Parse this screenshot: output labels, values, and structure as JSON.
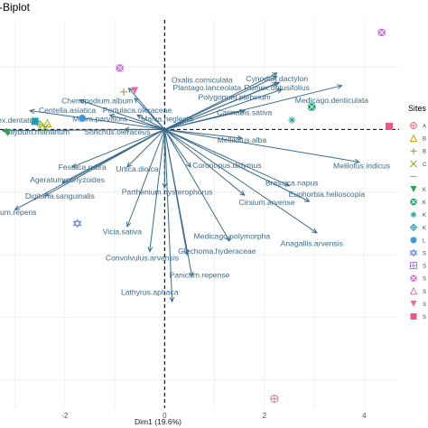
{
  "title": "-Biplot",
  "chart_data": {
    "type": "scatter",
    "title": "-Biplot",
    "xlabel": "Dim1 (19.6%)",
    "ylabel": "",
    "xlim": [
      -3.3,
      4.7
    ],
    "ylim": [
      -4.45,
      1.75
    ],
    "x_ticks": [
      -2,
      0,
      2,
      4
    ],
    "x_tick_labels": [
      "-2",
      "0",
      "2",
      "4"
    ],
    "grid": true,
    "zero_lines": "dashed",
    "origin": [
      0,
      0
    ],
    "arrow_color": "#3a6b8c",
    "variables": [
      {
        "name": "Cynodon.dactylon",
        "x": 2.25,
        "y": 0.9
      },
      {
        "name": "Oxalis.corniculata",
        "x": 2.25,
        "y": 0.85
      },
      {
        "name": "Rumex.obtusifolius",
        "x": 2.3,
        "y": 0.75
      },
      {
        "name": "Plantago.lanceolata",
        "x": 2.25,
        "y": 0.74
      },
      {
        "name": "Polygonum.plebeium",
        "x": 2.35,
        "y": 0.64
      },
      {
        "name": "Medicago.denticulata",
        "x": 3.55,
        "y": 0.7
      },
      {
        "name": "Chenopodium.album",
        "x": -0.72,
        "y": 0.66
      },
      {
        "name": "Portulaca.oleraceae",
        "x": -0.6,
        "y": 0.5
      },
      {
        "name": "Centella.asiatica",
        "x": -1.7,
        "y": 0.47
      },
      {
        "name": "Cannabis.sativa",
        "x": 1.6,
        "y": 0.3
      },
      {
        "name": "Malva.neglecta",
        "x": -0.55,
        "y": 0.23
      },
      {
        "name": "Malva.parviflora",
        "x": -1.1,
        "y": 0.23
      },
      {
        "name": "Rumex.dentatus",
        "x": -2.7,
        "y": 0.3
      },
      {
        "name": "Silybum.marianum",
        "x": -3.25,
        "y": -0.02
      },
      {
        "name": "Sonchus.oleraceus",
        "x": -0.8,
        "y": 0.0
      },
      {
        "name": "Melilotus.alba",
        "x": 1.55,
        "y": -0.14
      },
      {
        "name": "Melilotus.indicus",
        "x": 3.9,
        "y": -0.52
      },
      {
        "name": "Festuca.rubra",
        "x": -1.85,
        "y": -0.6
      },
      {
        "name": "Urtica.dioica",
        "x": -0.75,
        "y": -0.6
      },
      {
        "name": "Coronopus.didymus",
        "x": 0.52,
        "y": -0.6
      },
      {
        "name": "Ageratum.conyzoides",
        "x": -2.05,
        "y": -0.85
      },
      {
        "name": "Brassica.napus",
        "x": 2.5,
        "y": -0.9
      },
      {
        "name": "Parthenium.hysterophorus",
        "x": 0.0,
        "y": -0.93
      },
      {
        "name": "Digitaria.sanguinalis",
        "x": -2.4,
        "y": -1.06
      },
      {
        "name": "Euphorbia.helioscopia",
        "x": 2.9,
        "y": -1.15
      },
      {
        "name": "Cynodon.repens",
        "x": -3.0,
        "y": -1.28
      },
      {
        "name": "Cirsium.arvense",
        "x": 1.6,
        "y": -1.05
      },
      {
        "name": "Anagallis.arvensis",
        "x": 3.05,
        "y": -1.65
      },
      {
        "name": "Vicia.sativa",
        "x": -0.75,
        "y": -1.55
      },
      {
        "name": "Medicago.polymorpha",
        "x": 1.3,
        "y": -1.78
      },
      {
        "name": "Glechoma.hyderaceae",
        "x": 0.45,
        "y": -2.0
      },
      {
        "name": "Convolvulus.arvensis",
        "x": -0.3,
        "y": -1.95
      },
      {
        "name": "Panicum.repense",
        "x": 0.55,
        "y": -2.35
      },
      {
        "name": "Lathyrus.aphaca",
        "x": 0.15,
        "y": -2.75
      }
    ],
    "variable_labels": [
      {
        "text": "Oxalis.corniculata",
        "x": 0.75,
        "y": 0.79
      },
      {
        "text": "Cynodon.dactylon",
        "x": 2.25,
        "y": 0.81
      },
      {
        "text": "Plantago.lanceolata",
        "x": 0.85,
        "y": 0.67
      },
      {
        "text": "Rumex.obtusifolius",
        "x": 2.25,
        "y": 0.67
      },
      {
        "text": "Polygonum.plebeium",
        "x": 1.4,
        "y": 0.52
      },
      {
        "text": "Medicago.denticulata",
        "x": 3.35,
        "y": 0.47
      },
      {
        "text": "Chenopodium.album",
        "x": -1.35,
        "y": 0.46
      },
      {
        "text": "Centella.asiatica",
        "x": -1.95,
        "y": 0.31
      },
      {
        "text": "Portulaca.oleraceae",
        "x": -0.55,
        "y": 0.31
      },
      {
        "text": "Carinabis.sativa",
        "x": 1.6,
        "y": 0.27
      },
      {
        "text": "Malva.parviflora",
        "x": -1.3,
        "y": 0.17
      },
      {
        "text": "Malva.neglecta",
        "x": 0.05,
        "y": 0.17
      },
      {
        "text": "ex.dentatus",
        "x": -2.95,
        "y": 0.15
      },
      {
        "text": "Silybum.marianum",
        "x": -2.55,
        "y": -0.04
      },
      {
        "text": "Sonchus.oleraceus",
        "x": -0.95,
        "y": -0.04
      },
      {
        "text": "Mellilotus.alba",
        "x": 1.55,
        "y": -0.17
      },
      {
        "text": "Melilotus.indicus",
        "x": 3.95,
        "y": -0.58
      },
      {
        "text": "Festuca.rubra",
        "x": -1.65,
        "y": -0.6
      },
      {
        "text": "Urtica.dioica",
        "x": -0.55,
        "y": -0.63
      },
      {
        "text": "Coronopus.didymus",
        "x": 1.25,
        "y": -0.57
      },
      {
        "text": "Ageratum.conyzoides",
        "x": -1.95,
        "y": -0.8
      },
      {
        "text": "Brassica.napus",
        "x": 2.55,
        "y": -0.85
      },
      {
        "text": "Parthenium.hysterophorus",
        "x": 0.05,
        "y": -1.0
      },
      {
        "text": "Euphorbia.helioscopia",
        "x": 3.25,
        "y": -1.03
      },
      {
        "text": "Digitaria.sanguinalis",
        "x": -2.1,
        "y": -1.06
      },
      {
        "text": "Cirsium.arvense",
        "x": 2.05,
        "y": -1.16
      },
      {
        "text": "ium.repens",
        "x": -2.95,
        "y": -1.32
      },
      {
        "text": "Anagallis.arvensis",
        "x": 2.95,
        "y": -1.82
      },
      {
        "text": "Vicia.sativa",
        "x": -0.85,
        "y": -1.63
      },
      {
        "text": "Medicago.polymorpha",
        "x": 1.35,
        "y": -1.7
      },
      {
        "text": "Glechoma.hyderaceae",
        "x": 1.05,
        "y": -1.94
      },
      {
        "text": "Convolvulus.arvensis",
        "x": -0.45,
        "y": -2.05
      },
      {
        "text": "Panicum.repense",
        "x": 0.7,
        "y": -2.32
      },
      {
        "text": "Lathyrus.aphaca",
        "x": -0.3,
        "y": -2.6
      }
    ],
    "legend": {
      "title": "Sites",
      "position": "right",
      "entries": [
        {
          "label": "A",
          "shape": "circle-plus",
          "color": "#e07a7a"
        },
        {
          "label": "B",
          "shape": "triangle",
          "color": "#c8a200"
        },
        {
          "label": "B",
          "shape": "plus",
          "color": "#b08f20"
        },
        {
          "label": "C",
          "shape": "x",
          "color": "#7ea020"
        },
        {
          "label": "",
          "shape": "dash",
          "color": "#8fb030"
        },
        {
          "label": "K",
          "shape": "triangle-down",
          "color": "#2e9f4a"
        },
        {
          "label": "K",
          "shape": "square-x",
          "color": "#1a9a6a"
        },
        {
          "label": "K",
          "shape": "asterisk",
          "color": "#20a99a"
        },
        {
          "label": "K",
          "shape": "diamond-plus",
          "color": "#1aa0b8"
        },
        {
          "label": "L",
          "shape": "circle",
          "color": "#3f98d8"
        },
        {
          "label": "S",
          "shape": "star6",
          "color": "#6d8ae0"
        },
        {
          "label": "S",
          "shape": "square-plus",
          "color": "#a57fe0"
        },
        {
          "label": "S",
          "shape": "square-x",
          "color": "#c874d6"
        },
        {
          "label": "S",
          "shape": "triangle",
          "color": "#e070c0"
        },
        {
          "label": "S",
          "shape": "triangle-down",
          "color": "#ec6aa0"
        },
        {
          "label": "S",
          "shape": "square",
          "color": "#ee5a7e"
        }
      ]
    },
    "sites": [
      {
        "x": 2.2,
        "y": -4.3,
        "shape": "circle-plus",
        "color": "#e07a7a"
      },
      {
        "x": -2.35,
        "y": 0.1,
        "shape": "triangle",
        "color": "#c8a200"
      },
      {
        "x": -0.82,
        "y": 0.6,
        "shape": "plus",
        "color": "#b08f20"
      },
      {
        "x": -2.4,
        "y": 0.03,
        "shape": "x",
        "color": "#7ea020"
      },
      {
        "x": -2.5,
        "y": 0.08,
        "shape": "diamond-plus",
        "color": "#9bb020"
      },
      {
        "x": -3.15,
        "y": -0.05,
        "shape": "triangle-down",
        "color": "#2e9f4a"
      },
      {
        "x": 2.95,
        "y": 0.36,
        "shape": "square-x",
        "color": "#1a9a6a"
      },
      {
        "x": 2.55,
        "y": 0.15,
        "shape": "asterisk",
        "color": "#20a99a"
      },
      {
        "x": -2.6,
        "y": 0.13,
        "shape": "square",
        "color": "#1aa0b8"
      },
      {
        "x": -1.65,
        "y": 0.18,
        "shape": "circle",
        "color": "#3f98d8"
      },
      {
        "x": -1.75,
        "y": -1.5,
        "shape": "star6",
        "color": "#6d8ae0"
      },
      {
        "x": -0.9,
        "y": 0.98,
        "shape": "square-x",
        "color": "#c874d6"
      },
      {
        "x": 4.35,
        "y": 1.55,
        "shape": "square-x",
        "color": "#c874d6"
      },
      {
        "x": -0.6,
        "y": 0.62,
        "shape": "triangle-down",
        "color": "#ec6aa0"
      },
      {
        "x": 4.5,
        "y": 0.05,
        "shape": "square",
        "color": "#ee5a7e"
      }
    ]
  }
}
